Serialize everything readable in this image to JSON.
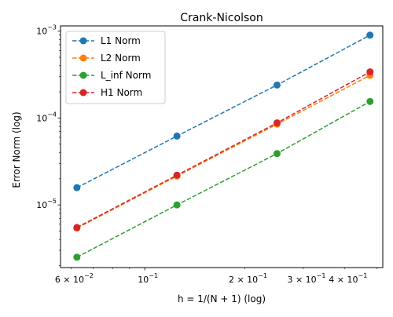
{
  "chart_data": {
    "type": "line",
    "title": "Crank-Nicolson",
    "xlabel": "h = 1/(N + 1) (log)",
    "ylabel": "Error Norm (log)",
    "xscale": "log",
    "yscale": "log",
    "xlim": [
      0.0558,
      0.52
    ],
    "ylim": [
      1.9e-06,
      0.00115
    ],
    "x": [
      0.0625,
      0.125,
      0.25,
      0.476
    ],
    "series": [
      {
        "name": "L1 Norm",
        "color": "#1f77b4",
        "values": [
          1.58e-05,
          6.2e-05,
          0.00024,
          0.0009
        ]
      },
      {
        "name": "L2 Norm",
        "color": "#ff7f0e",
        "values": [
          5.4e-06,
          2.15e-05,
          8.5e-05,
          0.00031
        ]
      },
      {
        "name": "L_inf Norm",
        "color": "#2ca02c",
        "values": [
          2.5e-06,
          1e-05,
          3.9e-05,
          0.000155
        ]
      },
      {
        "name": "H1 Norm",
        "color": "#d62728",
        "values": [
          5.5e-06,
          2.2e-05,
          8.8e-05,
          0.00034
        ]
      }
    ],
    "x_major_ticks": [
      {
        "value": 0.1,
        "mantissa": "10",
        "exponent": "−1"
      }
    ],
    "x_minor_labeled_ticks": [
      {
        "value": 0.06,
        "mantissa": "6 × 10",
        "exponent": "−2"
      },
      {
        "value": 0.2,
        "mantissa": "2 × 10",
        "exponent": "−1"
      },
      {
        "value": 0.3,
        "mantissa": "3 × 10",
        "exponent": "−1"
      },
      {
        "value": 0.4,
        "mantissa": "4 × 10",
        "exponent": "−1"
      }
    ],
    "y_major_ticks": [
      {
        "value": 1e-05,
        "mantissa": "10",
        "exponent": "−5"
      },
      {
        "value": 0.0001,
        "mantissa": "10",
        "exponent": "−4"
      },
      {
        "value": 0.001,
        "mantissa": "10",
        "exponent": "−3"
      }
    ],
    "grid": false,
    "legend_position": "top-left",
    "line_style": "dashed",
    "marker": "circle"
  }
}
